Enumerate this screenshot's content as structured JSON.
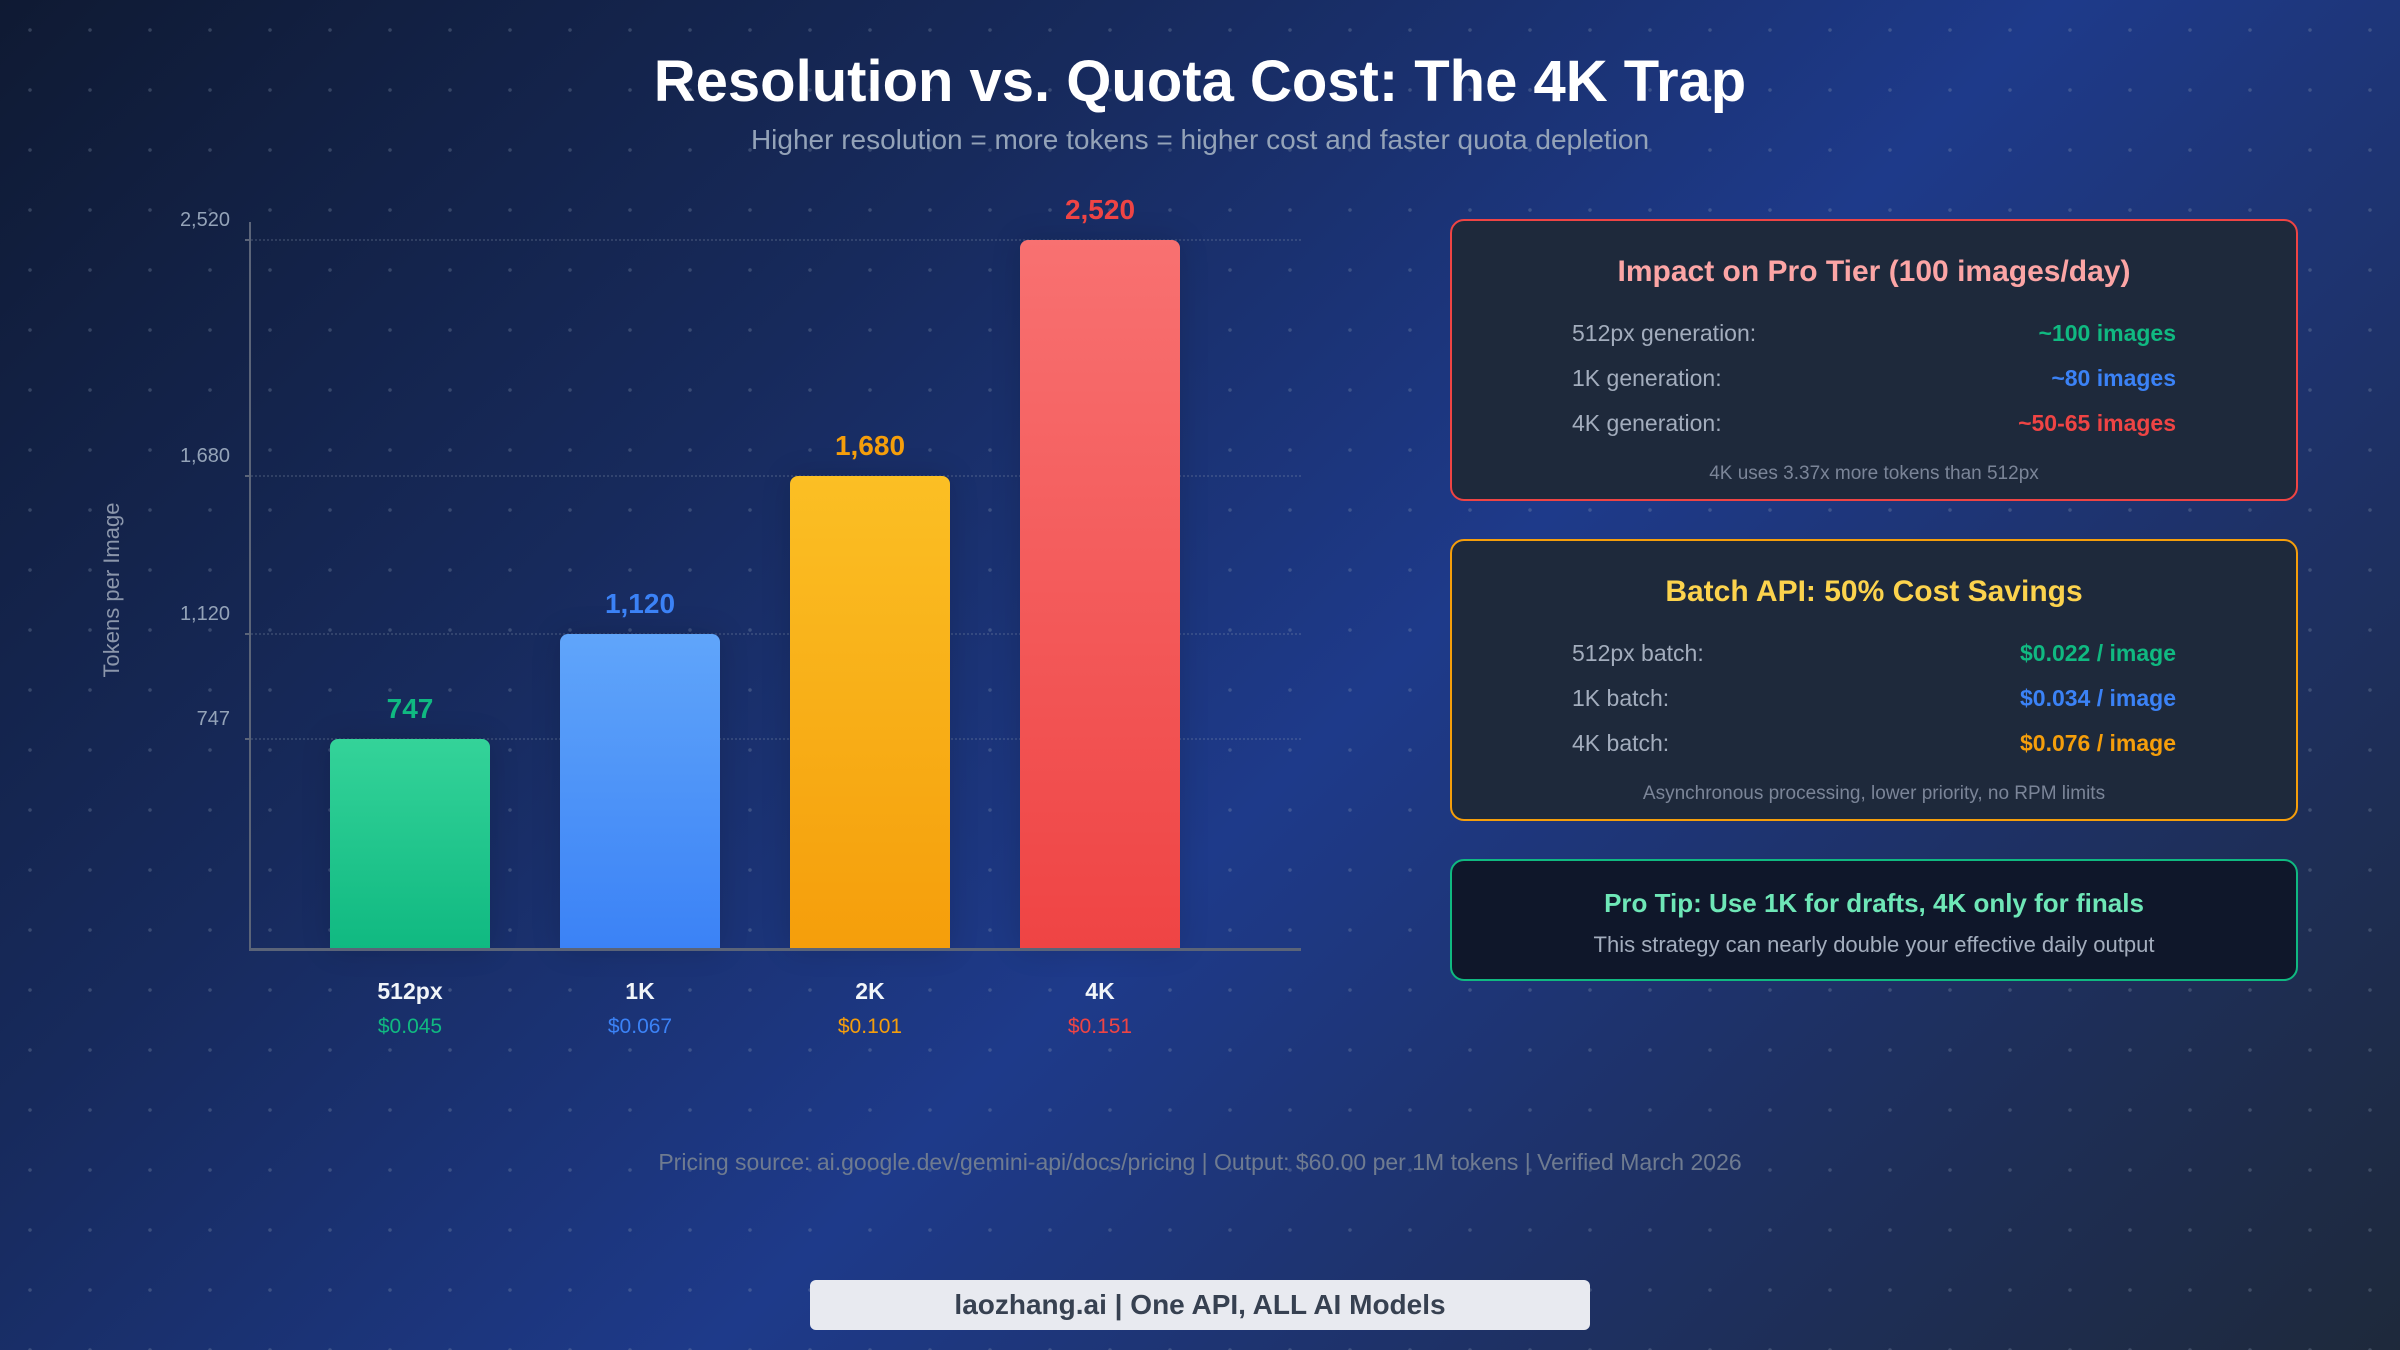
{
  "header": {
    "title": "Resolution vs. Quota Cost: The 4K Trap",
    "subtitle": "Higher resolution = more tokens = higher cost and faster quota depletion"
  },
  "chart_data": {
    "type": "bar",
    "title": "Resolution vs. Quota Cost: The 4K Trap",
    "subtitle": "Higher resolution = more tokens = higher cost and faster quota depletion",
    "xlabel": "",
    "ylabel": "Tokens per Image",
    "categories": [
      "512px",
      "1K",
      "2K",
      "4K"
    ],
    "values": [
      747,
      1120,
      1680,
      2520
    ],
    "value_labels": [
      "747",
      "1,120",
      "1,680",
      "2,520"
    ],
    "prices": [
      "$0.045",
      "$0.067",
      "$0.101",
      "$0.151"
    ],
    "colors": [
      "#10b981",
      "#3b82f6",
      "#f59e0b",
      "#ef4444"
    ],
    "yticks": [
      747,
      1120,
      1680,
      2520
    ],
    "ytick_labels": [
      "747",
      "1,120",
      "1,680",
      "2,520"
    ],
    "ylim": [
      0,
      2520
    ],
    "grid": true,
    "legend": "none"
  },
  "cards": {
    "impact": {
      "title": "Impact on Pro Tier (100 images/day)",
      "border_color": "#ef4444",
      "title_color": "#fca5a5",
      "rows": [
        {
          "label": "512px generation:",
          "value": "~100 images",
          "color": "#10b981"
        },
        {
          "label": "1K generation:",
          "value": "~80 images",
          "color": "#3b82f6"
        },
        {
          "label": "4K generation:",
          "value": "~50-65 images",
          "color": "#ef4444"
        }
      ],
      "note": "4K uses 3.37x more tokens than 512px"
    },
    "batch": {
      "title": "Batch API: 50% Cost Savings",
      "border_color": "#f59e0b",
      "title_color": "#fcd34d",
      "rows": [
        {
          "label": "512px batch:",
          "value": "$0.022 / image",
          "color": "#10b981"
        },
        {
          "label": "1K batch:",
          "value": "$0.034 / image",
          "color": "#3b82f6"
        },
        {
          "label": "4K batch:",
          "value": "$0.076 / image",
          "color": "#f59e0b"
        }
      ],
      "note": "Asynchronous processing, lower priority, no RPM limits"
    },
    "tip": {
      "title": "Pro Tip: Use 1K for drafts, 4K only for finals",
      "text": "This strategy can nearly double your effective daily output",
      "border_color": "#10b981",
      "title_color": "#6ee7b7"
    }
  },
  "footer": {
    "source": "Pricing source: ai.google.dev/gemini-api/docs/pricing | Output: $60.00 per 1M tokens | Verified March 2026",
    "brand": "laozhang.ai | One API, ALL AI Models"
  }
}
